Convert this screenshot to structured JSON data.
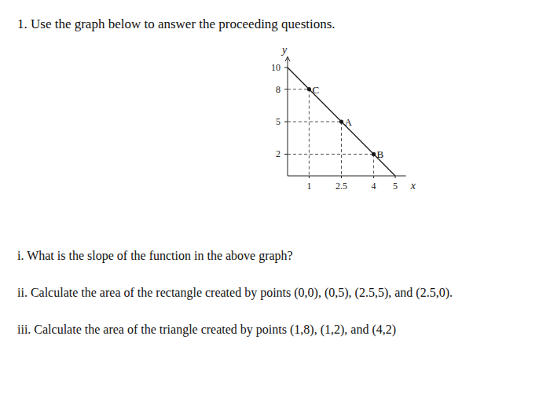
{
  "header": {
    "title": "1. Use the graph below to answer the proceeding questions."
  },
  "chart_data": {
    "type": "line",
    "x_label": "x",
    "y_label": "y",
    "xlim": [
      0,
      5.5
    ],
    "ylim": [
      0,
      11
    ],
    "xticks": [
      1,
      2.5,
      4,
      5
    ],
    "yticks": [
      2,
      5,
      8,
      10
    ],
    "series": [
      {
        "type": "line",
        "x": [
          0,
          5
        ],
        "values": [
          10,
          0
        ],
        "color": "#1a1a1a",
        "line_style": "solid"
      },
      {
        "type": "scatter",
        "x": [
          1,
          2.5,
          4
        ],
        "values": [
          8,
          5,
          2
        ],
        "labels": [
          "C",
          "A",
          "B"
        ],
        "color": "#1a1a1a",
        "marker": "circle",
        "line_style": "dashed"
      }
    ]
  },
  "questions": [
    "i. What is the slope of the function in the above graph?",
    "ii. Calculate the area of the rectangle created by points (0,0), (0,5), (2.5,5), and (2.5,0).",
    "iii. Calculate the area of the triangle created by points (1,8), (1,2), and (4,2)"
  ]
}
